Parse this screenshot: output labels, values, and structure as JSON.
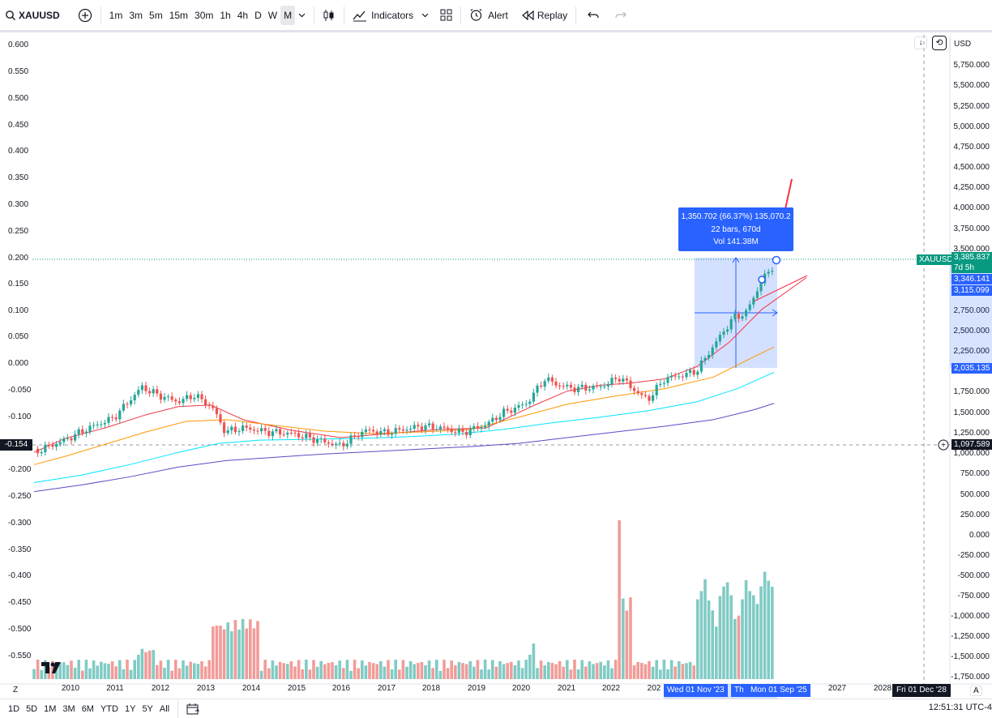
{
  "toolbar": {
    "symbol": "XAUUSD",
    "intervals": [
      "1m",
      "3m",
      "5m",
      "15m",
      "30m",
      "1h",
      "4h",
      "D",
      "W",
      "M"
    ],
    "active_interval": "M",
    "indicators_label": "Indicators",
    "alert_label": "Alert",
    "replay_label": "Replay"
  },
  "axes": {
    "left_ticks": [
      "0.600",
      "0.550",
      "0.500",
      "0.450",
      "0.400",
      "0.350",
      "0.300",
      "0.250",
      "0.200",
      "0.150",
      "0.100",
      "0.050",
      "0.000",
      "-0.050",
      "-0.100",
      "-0.200",
      "-0.250",
      "-0.300",
      "-0.350",
      "-0.400",
      "-0.450",
      "-0.500",
      "-0.550"
    ],
    "right_ticks": [
      "5,750.000",
      "5,500.000",
      "5,250.000",
      "5,000.000",
      "4,750.000",
      "4,500.000",
      "4,250.000",
      "4,000.000",
      "3,750.000",
      "3,500.000",
      "2,750.000",
      "2,500.000",
      "2,250.000",
      "1,750.000",
      "1,500.000",
      "1,250.000",
      "1,000.000",
      "750.000",
      "500.000",
      "250.000",
      "0.000",
      "-250.000",
      "-500.000",
      "-750.000",
      "-1,000.000",
      "-1,250.000",
      "-1,500.000",
      "-1,750.000"
    ],
    "currency": "USD",
    "time_ticks": [
      "2010",
      "2011",
      "2012",
      "2013",
      "2014",
      "2015",
      "2016",
      "2017",
      "2018",
      "2019",
      "2020",
      "2021",
      "2022",
      "202",
      "2027",
      "2028"
    ]
  },
  "price_tags": {
    "symbol_tag": "XAUUSD",
    "last_price": "3,385.837",
    "countdown": "7d 5h",
    "ma1": "3,346.141",
    "ma2": "3,115.099",
    "range_low": "2,035.135",
    "crosshair_price": "1,097.589",
    "crosshair_left": "-0.154"
  },
  "measure": {
    "line1": "1,350.702 (66.37%) 135,070.2",
    "line2": "22 bars, 670d",
    "line3": "Vol 141.38M"
  },
  "dates": {
    "range_start": "Wed 01 Nov '23",
    "range_end_short": "Th",
    "range_end": "Mon 01 Sep '25",
    "crosshair": "Fri 01 Dec '28"
  },
  "bottombar": {
    "ranges": [
      "1D",
      "5D",
      "1M",
      "3M",
      "6M",
      "YTD",
      "1Y",
      "5Y",
      "All"
    ],
    "clock": "12:51:31 UTC-4"
  },
  "colors": {
    "up": "#26a69a",
    "down": "#ef5350",
    "vol_up": "#80cbc4",
    "vol_down": "#f19c99",
    "ma_red": "#f23645",
    "ma_orange": "#ff9800",
    "ma_cyan": "#00e5ff",
    "ma_purple": "#5b4bc4",
    "accent": "#2962ff"
  },
  "chart_data": {
    "type": "candlestick",
    "symbol": "XAUUSD",
    "interval": "M",
    "key_prices": {
      "last": 3385.837,
      "ma_fast": 3346.141,
      "ma_slow": 3115.099,
      "range_low": 2035.135
    }
  }
}
